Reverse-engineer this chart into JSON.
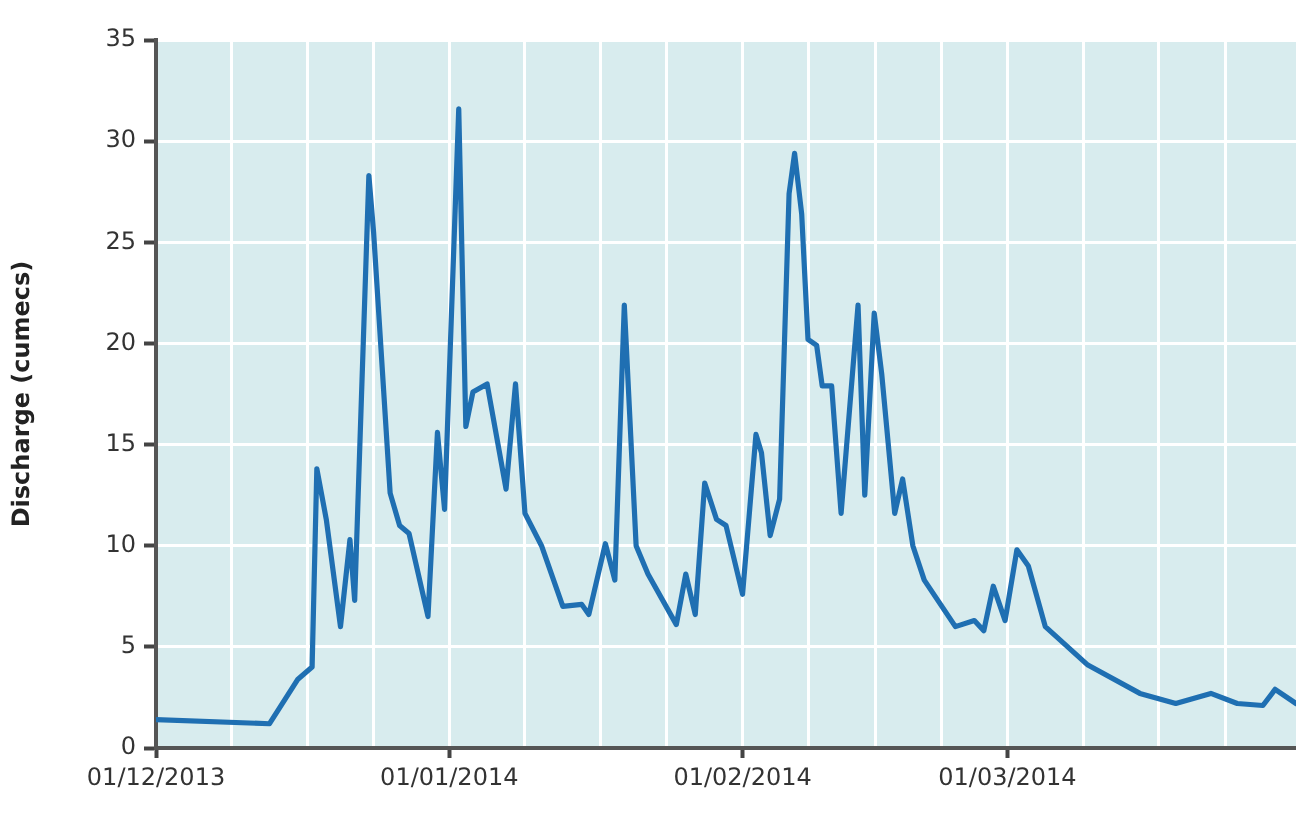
{
  "chart_data": {
    "type": "line",
    "ylabel": "Discharge (cumecs)",
    "color": "#1f6fb2",
    "grid": true,
    "marker": "none",
    "line_style": "solid",
    "x": [
      "2013-12-01",
      "2013-12-13",
      "2013-12-16",
      "2013-12-17T12:00",
      "2013-12-18",
      "2013-12-19",
      "2013-12-20T12:00",
      "2013-12-21T12:00",
      "2013-12-22",
      "2013-12-23T12:00",
      "2013-12-24",
      "2013-12-25T18:00",
      "2013-12-26T18:00",
      "2013-12-27T18:00",
      "2013-12-29T18:00",
      "2013-12-30T18:00",
      "2013-12-31T12:00",
      "2014-01-02",
      "2014-01-02T18:00",
      "2014-01-03T12:00",
      "2014-01-05",
      "2014-01-07",
      "2014-01-08",
      "2014-01-09",
      "2014-01-10T18:00",
      "2014-01-13",
      "2014-01-15",
      "2014-01-15T18:00",
      "2014-01-17T12:00",
      "2014-01-18T12:00",
      "2014-01-19T12:00",
      "2014-01-20T18:00",
      "2014-01-22",
      "2014-01-25",
      "2014-01-26",
      "2014-01-27",
      "2014-01-28",
      "2014-01-29T06:00",
      "2014-01-30T06:00",
      "2014-02-01",
      "2014-02-02T10:00",
      "2014-02-03",
      "2014-02-03T22:00",
      "2014-02-04T22:00",
      "2014-02-05T22:00",
      "2014-02-06T12:00",
      "2014-02-07T06:00",
      "2014-02-07T22:00",
      "2014-02-08T20:00",
      "2014-02-09T10:00",
      "2014-02-10T10:00",
      "2014-02-11T10:00",
      "2014-02-13T05:00",
      "2014-02-13T22:00",
      "2014-02-14T22:00",
      "2014-02-15T17:00",
      "2014-02-17T02:00",
      "2014-02-17T22:00",
      "2014-02-19",
      "2014-02-20T05:00",
      "2014-02-23T12:00",
      "2014-02-25T12:00",
      "2014-02-26T12:00",
      "2014-02-27T12:00",
      "2014-02-28T18:00",
      "2014-03-02",
      "2014-03-03T05:00",
      "2014-03-05",
      "2014-03-09T12:00",
      "2014-03-15",
      "2014-03-18T19:00",
      "2014-03-22T12:00",
      "2014-03-25T07:00",
      "2014-03-28",
      "2014-03-29T07:00",
      "2014-03-31T12:00"
    ],
    "values": [
      1.4,
      1.2,
      3.4,
      4.0,
      13.8,
      11.3,
      6.0,
      10.3,
      7.3,
      28.3,
      25.5,
      12.6,
      11.0,
      10.6,
      6.5,
      15.6,
      11.8,
      31.6,
      15.9,
      17.6,
      18.0,
      12.8,
      18.0,
      11.6,
      10.0,
      7.0,
      7.1,
      6.6,
      10.1,
      8.3,
      21.9,
      10.0,
      8.6,
      6.1,
      8.6,
      6.6,
      13.1,
      11.3,
      11.0,
      7.6,
      15.5,
      14.6,
      10.5,
      12.3,
      27.4,
      29.4,
      26.4,
      20.2,
      19.9,
      17.9,
      17.9,
      11.6,
      21.9,
      12.5,
      21.5,
      18.5,
      11.6,
      13.3,
      10.0,
      8.3,
      6.0,
      6.3,
      5.8,
      8.0,
      6.3,
      9.8,
      9.0,
      6.0,
      4.1,
      2.7,
      2.2,
      2.7,
      2.2,
      2.1,
      2.9,
      2.2
    ],
    "xlim": [
      "2013-12-01",
      "2014-03-31T12:00"
    ],
    "xticks": [
      {
        "value": "2013-12-01",
        "label": "01/12/2013"
      },
      {
        "value": "2013-12-09",
        "label": null
      },
      {
        "value": "2013-12-17",
        "label": null
      },
      {
        "value": "2013-12-24",
        "label": null
      },
      {
        "value": "2014-01-01",
        "label": "01/01/2014"
      },
      {
        "value": "2014-01-09",
        "label": null
      },
      {
        "value": "2014-01-17",
        "label": null
      },
      {
        "value": "2014-01-24",
        "label": null
      },
      {
        "value": "2014-02-01",
        "label": "01/02/2014"
      },
      {
        "value": "2014-02-08",
        "label": null
      },
      {
        "value": "2014-02-15",
        "label": null
      },
      {
        "value": "2014-02-22",
        "label": null
      },
      {
        "value": "2014-03-01",
        "label": "01/03/2014"
      },
      {
        "value": "2014-03-09",
        "label": null
      },
      {
        "value": "2014-03-17",
        "label": null
      },
      {
        "value": "2014-03-24",
        "label": null
      }
    ],
    "ylim": [
      0,
      35
    ],
    "yticks": [
      0,
      5,
      10,
      15,
      20,
      25,
      30,
      35
    ]
  }
}
